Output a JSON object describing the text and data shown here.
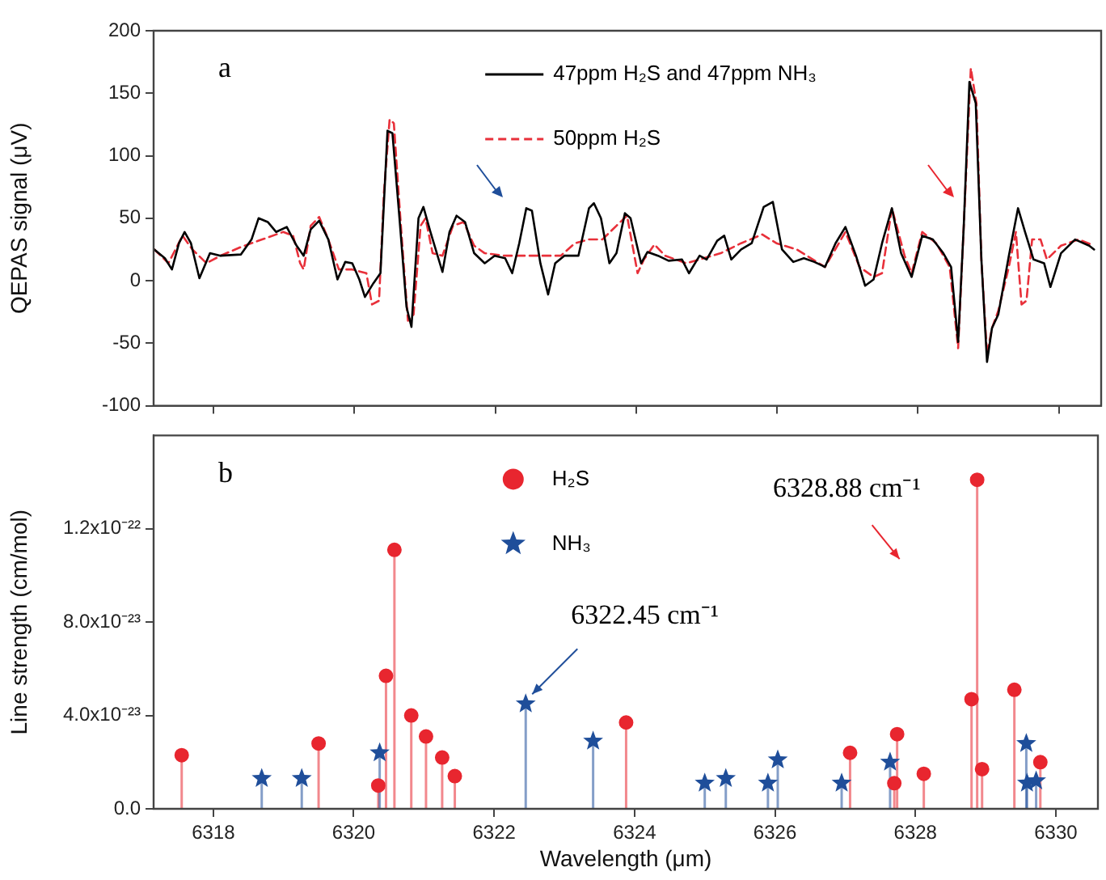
{
  "chart_data": [
    {
      "type": "line",
      "ylabel": "QEPAS signal (μV)",
      "annotations": [
        "a"
      ],
      "legend": "top",
      "tick_labels": "y",
      "xlim": [
        6317.15,
        6330.6
      ],
      "xticks": [
        6318,
        6320,
        6322,
        6324,
        6326,
        6328,
        6330
      ],
      "ylim": [
        -100,
        200
      ],
      "yticks": [
        -100,
        -50,
        0,
        50,
        100,
        150,
        200
      ],
      "series": [
        {
          "name": "47ppm H₂S and 47ppm NH₃",
          "color": "#000000",
          "line_style": "solid",
          "x": [
            6317.16,
            6317.31,
            6317.41,
            6317.51,
            6317.59,
            6317.68,
            6317.8,
            6317.95,
            6318.1,
            6318.39,
            6318.54,
            6318.64,
            6318.77,
            6318.89,
            6319.04,
            6319.18,
            6319.28,
            6319.38,
            6319.5,
            6319.63,
            6319.76,
            6319.87,
            6319.97,
            6320.07,
            6320.15,
            6320.27,
            6320.37,
            6320.47,
            6320.54,
            6320.64,
            6320.74,
            6320.81,
            6320.91,
            6320.98,
            6321.08,
            6321.25,
            6321.35,
            6321.45,
            6321.57,
            6321.7,
            6321.85,
            6321.99,
            6322.14,
            6322.24,
            6322.34,
            6322.44,
            6322.52,
            6322.64,
            6322.75,
            6322.85,
            6322.98,
            6323.18,
            6323.33,
            6323.4,
            6323.5,
            6323.62,
            6323.72,
            6323.84,
            6323.92,
            6324.07,
            6324.16,
            6324.31,
            6324.46,
            6324.65,
            6324.75,
            6324.9,
            6325.0,
            6325.15,
            6325.25,
            6325.35,
            6325.49,
            6325.64,
            6325.81,
            6325.94,
            6326.07,
            6326.23,
            6326.38,
            6326.53,
            6326.68,
            6326.83,
            6326.97,
            6327.12,
            6327.25,
            6327.37,
            6327.49,
            6327.63,
            6327.76,
            6327.91,
            6328.06,
            6328.21,
            6328.36,
            6328.47,
            6328.57,
            6328.65,
            6328.73,
            6328.82,
            6328.9,
            6328.98,
            6329.05,
            6329.14,
            6329.29,
            6329.42,
            6329.52,
            6329.64,
            6329.79,
            6329.88,
            6330.03,
            6330.23,
            6330.43,
            6330.5
          ],
          "values": [
            25,
            18,
            9,
            30,
            39,
            30,
            2,
            22,
            20,
            21,
            33,
            50,
            47,
            39,
            43,
            28,
            20,
            41,
            48,
            33,
            1,
            15,
            14,
            1,
            -13,
            -2,
            6,
            120,
            118,
            50,
            -21,
            -37,
            50,
            59,
            39,
            7,
            39,
            52,
            47,
            22,
            14,
            20,
            18,
            6,
            30,
            58,
            56,
            14,
            -11,
            14,
            20,
            20,
            58,
            62,
            50,
            14,
            22,
            54,
            50,
            14,
            23,
            20,
            16,
            17,
            6,
            20,
            17,
            32,
            36,
            17,
            25,
            30,
            59,
            63,
            25,
            15,
            18,
            15,
            11,
            30,
            43,
            20,
            -4,
            1,
            30,
            58,
            22,
            3,
            36,
            33,
            22,
            11,
            -49,
            44,
            159,
            142,
            17,
            -65,
            -38,
            -27,
            20,
            58,
            39,
            17,
            14,
            -5,
            22,
            33,
            28,
            25
          ]
        },
        {
          "name": "50ppm H₂S",
          "color": "#e8303a",
          "line_style": "dashed",
          "x": [
            6317.16,
            6317.36,
            6317.56,
            6317.7,
            6317.9,
            6318.1,
            6318.39,
            6318.69,
            6318.99,
            6319.13,
            6319.23,
            6319.28,
            6319.38,
            6319.5,
            6319.63,
            6319.78,
            6319.97,
            6320.17,
            6320.25,
            6320.35,
            6320.42,
            6320.5,
            6320.56,
            6320.66,
            6320.76,
            6320.84,
            6320.94,
            6321.01,
            6321.11,
            6321.25,
            6321.4,
            6321.55,
            6321.7,
            6321.85,
            6322.14,
            6322.54,
            6322.93,
            6323.13,
            6323.33,
            6323.52,
            6323.72,
            6323.87,
            6324.02,
            6324.11,
            6324.26,
            6324.41,
            6324.71,
            6324.9,
            6325.2,
            6325.49,
            6325.79,
            6325.99,
            6326.28,
            6326.68,
            6326.97,
            6327.17,
            6327.37,
            6327.49,
            6327.63,
            6327.81,
            6327.91,
            6328.06,
            6328.26,
            6328.45,
            6328.57,
            6328.65,
            6328.75,
            6328.83,
            6328.9,
            6328.98,
            6329.05,
            6329.14,
            6329.29,
            6329.39,
            6329.47,
            6329.54,
            6329.62,
            6329.74,
            6329.83,
            6330.03,
            6330.28,
            6330.5
          ],
          "values": [
            25,
            14,
            36,
            25,
            14,
            20,
            27,
            33,
            39,
            36,
            14,
            9,
            44,
            51,
            33,
            9,
            9,
            6,
            -19,
            -16,
            71,
            129,
            126,
            44,
            -32,
            -27,
            44,
            50,
            22,
            20,
            44,
            47,
            28,
            22,
            20,
            20,
            20,
            30,
            33,
            33,
            44,
            52,
            6,
            17,
            29,
            20,
            14,
            17,
            22,
            30,
            37,
            30,
            25,
            11,
            39,
            11,
            3,
            6,
            58,
            20,
            6,
            39,
            30,
            11,
            -54,
            44,
            170,
            142,
            17,
            -59,
            -38,
            -24,
            11,
            39,
            -19,
            -16,
            33,
            33,
            17,
            28,
            33,
            28
          ]
        }
      ]
    },
    {
      "type": "lollipop",
      "xlabel": "Wavelength (μm)",
      "ylabel": "Line strength (cm/mol)",
      "legend": "top",
      "annotations": [
        "b",
        {
          "text": "6322.45 cm⁻¹",
          "x": 6322.45,
          "y": 4.5e-23
        },
        {
          "text": "6328.88 cm⁻¹",
          "x": 6328.88,
          "y": 1.41e-22
        }
      ],
      "xlim": [
        6317.15,
        6330.6
      ],
      "xticks": [
        6318,
        6320,
        6322,
        6324,
        6326,
        6328,
        6330
      ],
      "ylim": [
        0,
        1.6e-22
      ],
      "yticks": [
        {
          "value": 0,
          "label": "0.0"
        },
        {
          "value": 4e-23,
          "label": "4.0x10⁻²³"
        },
        {
          "value": 8e-23,
          "label": "8.0x10⁻²³"
        },
        {
          "value": 1.2e-22,
          "label": "1.2x10⁻²²"
        }
      ],
      "series": [
        {
          "name": "H₂S",
          "color": "#e8262f",
          "marker": "circle",
          "x": [
            6317.55,
            6319.5,
            6320.35,
            6320.46,
            6320.58,
            6320.82,
            6321.03,
            6321.26,
            6321.44,
            6323.88,
            6327.07,
            6327.7,
            6327.74,
            6328.12,
            6328.8,
            6328.88,
            6328.95,
            6329.41,
            6329.78
          ],
          "values": [
            2.3e-23,
            2.8e-23,
            1e-23,
            5.7e-23,
            1.11e-22,
            4e-23,
            3.1e-23,
            2.2e-23,
            1.4e-23,
            3.7e-23,
            2.4e-23,
            1.1e-23,
            3.2e-23,
            1.5e-23,
            4.7e-23,
            1.41e-22,
            1.7e-23,
            5.1e-23,
            2e-23
          ]
        },
        {
          "name": "NH₃",
          "color": "#1f4e9a",
          "marker": "star",
          "x": [
            6318.69,
            6319.26,
            6320.37,
            6322.45,
            6323.41,
            6325.0,
            6325.3,
            6325.9,
            6326.04,
            6326.95,
            6327.64,
            6329.58,
            6329.59,
            6329.72
          ],
          "values": [
            1.3e-23,
            1.3e-23,
            2.4e-23,
            4.5e-23,
            2.9e-23,
            1.1e-23,
            1.3e-23,
            1.1e-23,
            2.1e-23,
            1.1e-23,
            2e-23,
            2.8e-23,
            1.1e-23,
            1.2e-23
          ]
        }
      ]
    }
  ]
}
